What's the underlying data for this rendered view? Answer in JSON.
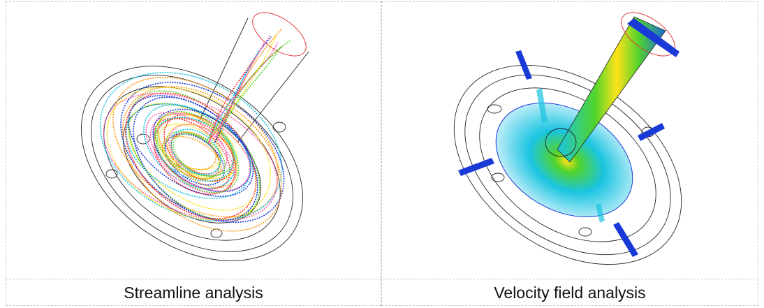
{
  "figure": {
    "panels": [
      {
        "caption": "Streamline analysis"
      },
      {
        "caption": "Velocity field analysis"
      }
    ],
    "colors": {
      "outline": "#222222",
      "inlet_ring": "#e23a3a",
      "streamline_palette": [
        "#ff2a2a",
        "#ff9b1a",
        "#ffe21a",
        "#52d42b",
        "#1ac4e0",
        "#1a3ad8",
        "#ff5fb0"
      ],
      "velocity_low": "#1a3ad8",
      "velocity_mid": "#1ac4e0",
      "velocity_high": "#ff2a2a"
    }
  }
}
